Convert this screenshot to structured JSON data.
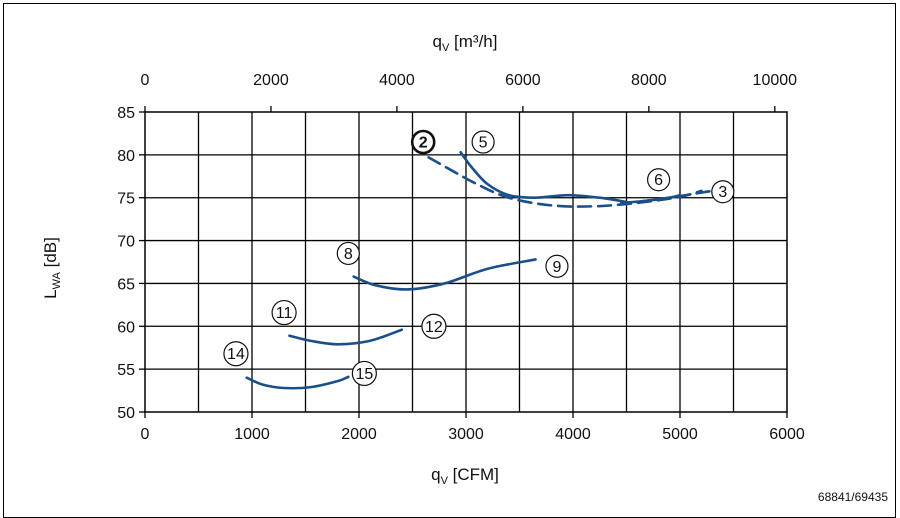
{
  "chart_data": {
    "type": "line",
    "xlabel": "q_V [CFM]",
    "x2label": "q_V [m³/h]",
    "ylabel": "L_WA [dB]",
    "xlim": [
      0,
      6000
    ],
    "x2lim": [
      0,
      10193.6
    ],
    "ylim": [
      50,
      85
    ],
    "x_ticks": [
      "0",
      "1000",
      "2000",
      "3000",
      "4000",
      "5000",
      "6000"
    ],
    "x2_ticks": [
      "0",
      "2000",
      "4000",
      "6000",
      "8000",
      "10000"
    ],
    "y_ticks": [
      "50",
      "55",
      "60",
      "65",
      "70",
      "75",
      "80",
      "85"
    ],
    "grid": true,
    "grid_minor_x": 500,
    "grid_y": 5,
    "accent_color": "#1a4f8a",
    "series": [
      {
        "label": "2",
        "style": "dashed",
        "emphasis": true,
        "points": [
          [
            2650,
            79.7
          ],
          [
            2850,
            78.3
          ],
          [
            3100,
            76.6
          ],
          [
            3400,
            75.0
          ],
          [
            3800,
            74.1
          ],
          [
            4200,
            74.0
          ],
          [
            4600,
            74.4
          ],
          [
            5000,
            75.1
          ],
          [
            5200,
            75.8
          ]
        ]
      },
      {
        "label": "3",
        "style": "dashed",
        "points": [
          [
            4600,
            74.5
          ],
          [
            4900,
            75.0
          ],
          [
            5150,
            75.5
          ],
          [
            5300,
            75.8
          ]
        ]
      },
      {
        "label": "5",
        "style": "solid",
        "points": [
          [
            2950,
            80.3
          ],
          [
            3050,
            78.6
          ],
          [
            3200,
            76.6
          ],
          [
            3400,
            75.3
          ],
          [
            3650,
            75.0
          ],
          [
            3950,
            75.3
          ],
          [
            4250,
            75.0
          ],
          [
            4500,
            74.5
          ]
        ]
      },
      {
        "label": "6",
        "style": "solid",
        "points": [
          [
            4450,
            74.4
          ],
          [
            4650,
            74.6
          ],
          [
            4900,
            75.0
          ],
          [
            5000,
            75.3
          ]
        ]
      },
      {
        "label": "9",
        "style": "solid",
        "points": [
          [
            1950,
            65.8
          ],
          [
            2150,
            64.8
          ],
          [
            2450,
            64.3
          ],
          [
            2800,
            65.0
          ],
          [
            3200,
            66.7
          ],
          [
            3650,
            67.8
          ]
        ]
      },
      {
        "label": "12",
        "style": "solid",
        "points": [
          [
            1350,
            58.9
          ],
          [
            1550,
            58.3
          ],
          [
            1800,
            57.9
          ],
          [
            2100,
            58.3
          ],
          [
            2400,
            59.6
          ]
        ]
      },
      {
        "label": "15",
        "style": "solid",
        "points": [
          [
            950,
            54.0
          ],
          [
            1100,
            53.2
          ],
          [
            1300,
            52.8
          ],
          [
            1550,
            52.9
          ],
          [
            1800,
            53.6
          ],
          [
            1900,
            54.1
          ]
        ]
      }
    ],
    "curve_labels": [
      {
        "text": "2",
        "x": 2600,
        "y": 81.5,
        "emphasis": true
      },
      {
        "text": "5",
        "x": 3160,
        "y": 81.5
      },
      {
        "text": "6",
        "x": 4800,
        "y": 77.1
      },
      {
        "text": "3",
        "x": 5400,
        "y": 75.7
      },
      {
        "text": "8",
        "x": 1900,
        "y": 68.5
      },
      {
        "text": "9",
        "x": 3850,
        "y": 67.0
      },
      {
        "text": "11",
        "x": 1300,
        "y": 61.6
      },
      {
        "text": "12",
        "x": 2700,
        "y": 60.0
      },
      {
        "text": "14",
        "x": 850,
        "y": 56.8
      },
      {
        "text": "15",
        "x": 2050,
        "y": 54.5
      }
    ]
  },
  "figure_ref": "68841/69435"
}
